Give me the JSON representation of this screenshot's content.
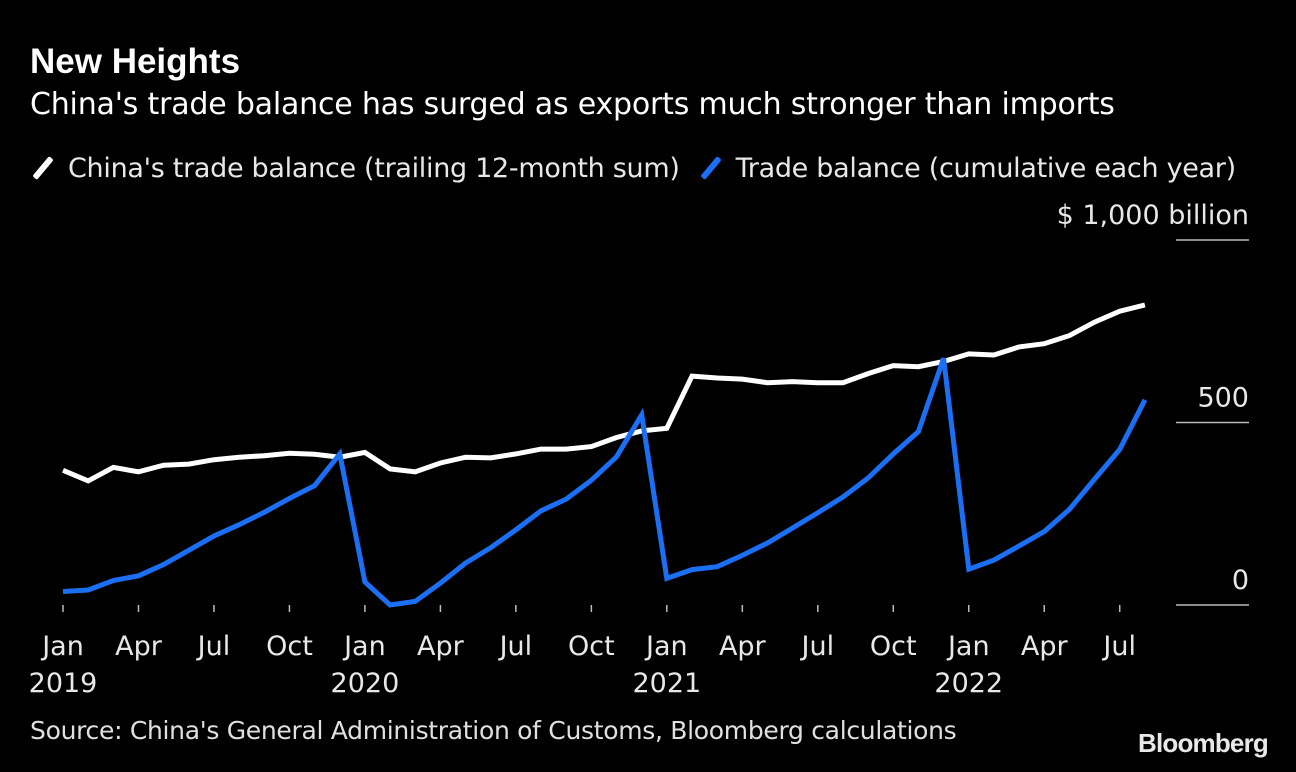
{
  "title": "New Heights",
  "subtitle": "China's trade balance has surged as exports much stronger than imports",
  "legend": [
    {
      "label": "China's trade balance (trailing 12-month sum)",
      "color": "#ffffff"
    },
    {
      "label": "Trade balance (cumulative each year)",
      "color": "#1a6ff5"
    }
  ],
  "source": "Source: China's General Administration of Customs, Bloomberg calculations",
  "brand": "Bloomberg",
  "chart_data": {
    "type": "line",
    "title": "New Heights",
    "ylabel": "$ 1,000 billion",
    "ylim": [
      0,
      1000
    ],
    "yticks": [
      {
        "value": 1000,
        "label": "$ 1,000 billion"
      },
      {
        "value": 500,
        "label": "500"
      },
      {
        "value": 0,
        "label": "0"
      }
    ],
    "x": [
      "2019-01",
      "2019-02",
      "2019-03",
      "2019-04",
      "2019-05",
      "2019-06",
      "2019-07",
      "2019-08",
      "2019-09",
      "2019-10",
      "2019-11",
      "2019-12",
      "2020-01",
      "2020-02",
      "2020-03",
      "2020-04",
      "2020-05",
      "2020-06",
      "2020-07",
      "2020-08",
      "2020-09",
      "2020-10",
      "2020-11",
      "2020-12",
      "2021-01",
      "2021-02",
      "2021-03",
      "2021-04",
      "2021-05",
      "2021-06",
      "2021-07",
      "2021-08",
      "2021-09",
      "2021-10",
      "2021-11",
      "2021-12",
      "2022-01",
      "2022-02",
      "2022-03",
      "2022-04",
      "2022-05",
      "2022-06",
      "2022-07",
      "2022-08"
    ],
    "xticks": [
      {
        "index": 0,
        "label": "Jan",
        "year": "2019"
      },
      {
        "index": 3,
        "label": "Apr"
      },
      {
        "index": 6,
        "label": "Jul"
      },
      {
        "index": 9,
        "label": "Oct"
      },
      {
        "index": 12,
        "label": "Jan",
        "year": "2020"
      },
      {
        "index": 15,
        "label": "Apr"
      },
      {
        "index": 18,
        "label": "Jul"
      },
      {
        "index": 21,
        "label": "Oct"
      },
      {
        "index": 24,
        "label": "Jan",
        "year": "2021"
      },
      {
        "index": 27,
        "label": "Apr"
      },
      {
        "index": 30,
        "label": "Jul"
      },
      {
        "index": 33,
        "label": "Oct"
      },
      {
        "index": 36,
        "label": "Jan",
        "year": "2022"
      },
      {
        "index": 39,
        "label": "Apr"
      },
      {
        "index": 42,
        "label": "Jul"
      }
    ],
    "series": [
      {
        "name": "China's trade balance (trailing 12-month sum)",
        "color": "#ffffff",
        "values": [
          369,
          340,
          377,
          365,
          383,
          386,
          398,
          405,
          409,
          416,
          413,
          405,
          418,
          373,
          365,
          389,
          405,
          403,
          414,
          427,
          427,
          434,
          459,
          477,
          484,
          627,
          622,
          619,
          609,
          612,
          609,
          609,
          634,
          656,
          653,
          667,
          688,
          685,
          707,
          716,
          738,
          775,
          805,
          822
        ]
      },
      {
        "name": "Trade balance (cumulative each year)",
        "color": "#1a6ff5",
        "values": [
          37,
          41,
          67,
          80,
          111,
          150,
          189,
          220,
          254,
          292,
          327,
          414,
          63,
          0,
          10,
          60,
          115,
          157,
          206,
          258,
          290,
          342,
          406,
          521,
          73,
          97,
          105,
          136,
          170,
          211,
          253,
          296,
          348,
          414,
          475,
          676,
          98,
          123,
          162,
          201,
          262,
          345,
          426,
          562
        ]
      }
    ]
  }
}
